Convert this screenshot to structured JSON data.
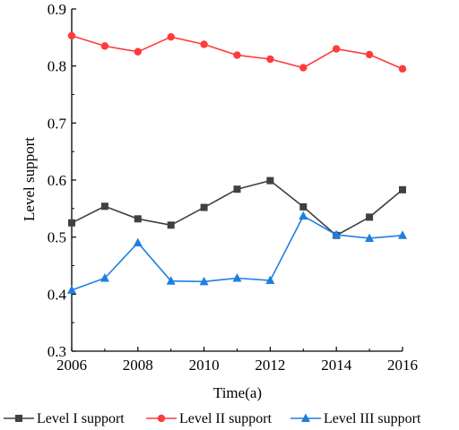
{
  "chart_data": {
    "type": "line",
    "xlabel": "Time(a)",
    "ylabel": "Level support",
    "xlim": [
      2006,
      2016
    ],
    "ylim": [
      0.3,
      0.9
    ],
    "xticks": [
      2006,
      2008,
      2010,
      2012,
      2014,
      2016
    ],
    "yticks": [
      0.3,
      0.4,
      0.5,
      0.6,
      0.7,
      0.8,
      0.9
    ],
    "xtick_labels": [
      "2006",
      "2008",
      "2010",
      "2012",
      "2014",
      "2016"
    ],
    "ytick_labels": [
      "0.3",
      "0.4",
      "0.5",
      "0.6",
      "0.7",
      "0.8",
      "0.9"
    ],
    "grid": false,
    "legend_position": "bottom",
    "x": [
      2006,
      2007,
      2008,
      2009,
      2010,
      2011,
      2012,
      2013,
      2014,
      2015,
      2016
    ],
    "series": [
      {
        "name": "Level I support",
        "color": "#404040",
        "marker": "square",
        "values": [
          0.525,
          0.554,
          0.532,
          0.521,
          0.552,
          0.584,
          0.599,
          0.553,
          0.503,
          0.535,
          0.583
        ]
      },
      {
        "name": "Level II support",
        "color": "#ff3b3b",
        "marker": "circle",
        "values": [
          0.853,
          0.835,
          0.825,
          0.851,
          0.838,
          0.819,
          0.812,
          0.797,
          0.83,
          0.82,
          0.795
        ]
      },
      {
        "name": "Level III support",
        "color": "#1f7fe0",
        "marker": "triangle",
        "values": [
          0.407,
          0.428,
          0.49,
          0.423,
          0.422,
          0.428,
          0.424,
          0.537,
          0.504,
          0.498,
          0.503
        ]
      }
    ]
  }
}
